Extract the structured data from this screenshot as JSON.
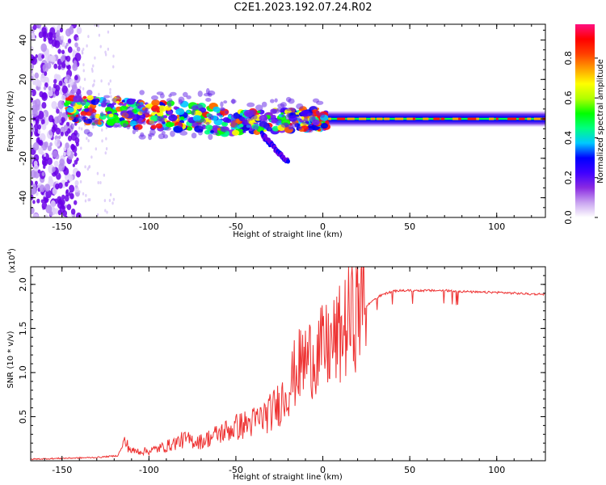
{
  "title": "C2E1.2023.192.07.24.R02",
  "chart_data": [
    {
      "type": "heatmap",
      "xlabel": "Height of straight line (km)",
      "ylabel": "Frequency (Hz)",
      "xlim": [
        -168,
        128
      ],
      "ylim": [
        -50,
        48
      ],
      "xticks": [
        -150,
        -100,
        -50,
        0,
        50,
        100
      ],
      "yticks": [
        -40,
        -20,
        0,
        20,
        40
      ],
      "colorbar": {
        "label": "Normalized spectral amplitude",
        "range": [
          0,
          0.97
        ],
        "ticks": [
          0.0,
          0.2,
          0.4,
          0.6,
          0.8
        ],
        "colormap": [
          "#ffffff",
          "#c9a3f0",
          "#8a2be2",
          "#3f00ff",
          "#0000ff",
          "#00c8ff",
          "#00ff80",
          "#00ff00",
          "#b0ff00",
          "#ffff00",
          "#ffa000",
          "#ff4000",
          "#ff0000",
          "#ff1080"
        ]
      },
      "features": {
        "dominant_frequency_hz": 0,
        "broadband_scatter_x_range": [
          -168,
          -140
        ],
        "chirp_tail": {
          "x": [
            -35,
            -20
          ],
          "y": [
            -8,
            -22
          ]
        }
      }
    },
    {
      "type": "line",
      "xlabel": "Height of straight line (km)",
      "ylabel": "SNR (10 * v/v)",
      "y_multiplier": "(x10^4)",
      "xlim": [
        -168,
        128
      ],
      "ylim": [
        0,
        2.2
      ],
      "xticks": [
        -150,
        -100,
        -50,
        0,
        50,
        100
      ],
      "yticks": [
        0.5,
        1.0,
        1.5,
        2.0
      ],
      "series": [
        {
          "color": "#ee3333",
          "x": [
            -168,
            -150,
            -130,
            -118,
            -114,
            -112,
            -110,
            -100,
            -90,
            -80,
            -70,
            -60,
            -50,
            -40,
            -30,
            -25,
            -20,
            -15,
            -10,
            -5,
            0,
            5,
            10,
            15,
            20,
            25,
            30,
            35,
            40,
            45,
            50,
            60,
            70,
            80,
            90,
            100,
            110,
            120,
            128
          ],
          "y": [
            0.01,
            0.02,
            0.03,
            0.05,
            0.2,
            0.15,
            0.1,
            0.1,
            0.15,
            0.22,
            0.2,
            0.28,
            0.35,
            0.4,
            0.5,
            0.6,
            0.75,
            0.95,
            1.05,
            1.1,
            1.15,
            1.2,
            1.3,
            1.45,
            1.6,
            1.75,
            1.84,
            1.89,
            1.92,
            1.93,
            1.93,
            1.93,
            1.93,
            1.92,
            1.91,
            1.91,
            1.9,
            1.89,
            1.89
          ]
        }
      ]
    }
  ]
}
